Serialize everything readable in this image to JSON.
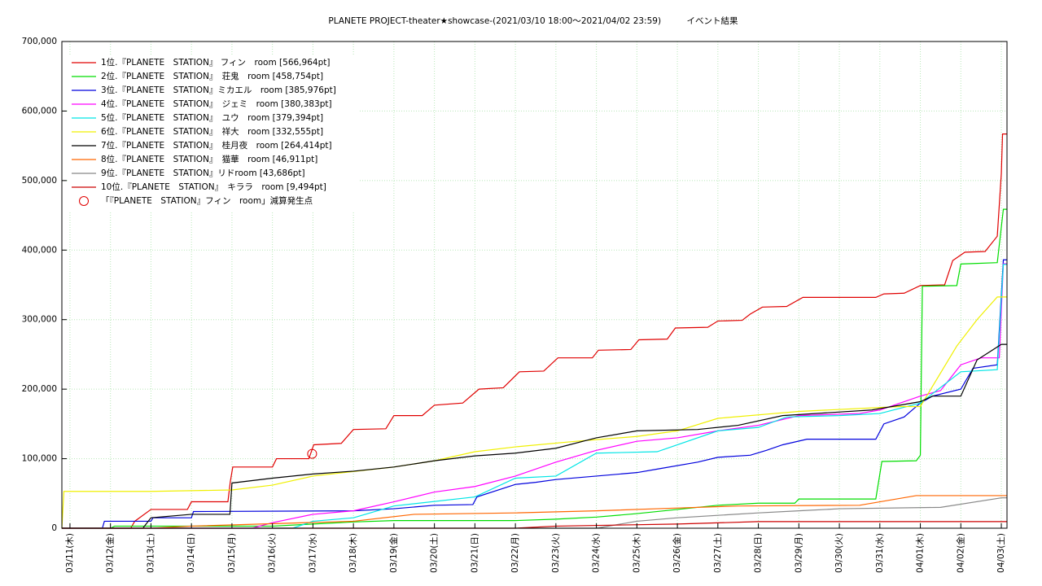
{
  "chart_data": {
    "type": "line",
    "title": "PLANETE PROJECT-theater★showcase-(2021/03/10 18:00～2021/04/02 23:59)　　　イベント結果",
    "xlim": [
      -0.2,
      23.14
    ],
    "ylim": [
      0,
      700000
    ],
    "grid": true,
    "legend": "top-left",
    "yticks": [
      0,
      {
        "value": 100000,
        "label": "100,000"
      },
      {
        "value": 200000,
        "label": "200,000"
      },
      {
        "value": 300000,
        "label": "300,000"
      },
      {
        "value": 400000,
        "label": "400,000"
      },
      {
        "value": 500000,
        "label": "500,000"
      },
      {
        "value": 600000,
        "label": "600,000"
      },
      {
        "value": 700000,
        "label": "700,000"
      }
    ],
    "xticks": [
      {
        "value": 0,
        "label": "03/11(木)"
      },
      {
        "value": 1,
        "label": "03/12(金)"
      },
      {
        "value": 2,
        "label": "03/13(土)"
      },
      {
        "value": 3,
        "label": "03/14(日)"
      },
      {
        "value": 4,
        "label": "03/15(月)"
      },
      {
        "value": 5,
        "label": "03/16(火)"
      },
      {
        "value": 6,
        "label": "03/17(水)"
      },
      {
        "value": 7,
        "label": "03/18(木)"
      },
      {
        "value": 8,
        "label": "03/19(金)"
      },
      {
        "value": 9,
        "label": "03/20(土)"
      },
      {
        "value": 10,
        "label": "03/21(日)"
      },
      {
        "value": 11,
        "label": "03/22(月)"
      },
      {
        "value": 12,
        "label": "03/23(火)"
      },
      {
        "value": 13,
        "label": "03/24(水)"
      },
      {
        "value": 14,
        "label": "03/25(木)"
      },
      {
        "value": 15,
        "label": "03/26(金)"
      },
      {
        "value": 16,
        "label": "03/27(土)"
      },
      {
        "value": 17,
        "label": "03/28(日)"
      },
      {
        "value": 18,
        "label": "03/29(月)"
      },
      {
        "value": 19,
        "label": "03/30(火)"
      },
      {
        "value": 20,
        "label": "03/31(水)"
      },
      {
        "value": 21,
        "label": "04/01(木)"
      },
      {
        "value": 22,
        "label": "04/02(金)"
      },
      {
        "value": 23,
        "label": "04/03(土)"
      }
    ],
    "series": [
      {
        "name": "1位.『PLANETE　STATION』 フィン　room [566,964pt]",
        "color": "#e00000",
        "x": [
          -0.2,
          1.5,
          1.6,
          2.0,
          2.9,
          3.0,
          3.9,
          3.96,
          4.02,
          5.0,
          5.1,
          5.9,
          6.02,
          6.7,
          7.0,
          7.8,
          8.0,
          8.7,
          9.0,
          9.7,
          10.1,
          10.7,
          11.1,
          11.7,
          12.05,
          12.9,
          13.05,
          13.85,
          14.05,
          14.75,
          14.95,
          15.75,
          16.0,
          16.6,
          16.8,
          17.1,
          17.7,
          18.1,
          19.9,
          20.1,
          20.6,
          21.0,
          21.6,
          21.8,
          22.1,
          22.6,
          22.9,
          23.0,
          23.03,
          23.14
        ],
        "values": [
          0,
          0,
          10000,
          27000,
          27000,
          38000,
          38000,
          67000,
          88000,
          88000,
          100000,
          100000,
          120000,
          122000,
          142000,
          143000,
          162000,
          162000,
          177000,
          180000,
          200000,
          202000,
          225000,
          226000,
          245000,
          245000,
          256000,
          257000,
          271000,
          272000,
          288000,
          289000,
          298000,
          299000,
          308000,
          318000,
          319000,
          332000,
          332000,
          337000,
          338000,
          349000,
          350000,
          385000,
          397000,
          398000,
          420000,
          510000,
          566964,
          566964
        ]
      },
      {
        "name": "2位.『PLANETE　STATION』　荘鬼　room [458,754pt]",
        "color": "#00dd00",
        "x": [
          -0.2,
          1.0,
          1.1,
          5.0,
          6.0,
          7.0,
          8.0,
          11.0,
          12.0,
          13.0,
          14.0,
          15.0,
          16.0,
          17.0,
          17.9,
          18.0,
          19.9,
          20.05,
          20.9,
          21.0,
          21.05,
          21.9,
          22.0,
          22.9,
          23.05,
          23.14
        ],
        "values": [
          0,
          0,
          3000,
          3000,
          6000,
          9000,
          11000,
          11000,
          13000,
          16000,
          21000,
          27000,
          33000,
          36000,
          36000,
          42000,
          42000,
          96000,
          97000,
          105000,
          348000,
          349000,
          380000,
          382000,
          458754,
          458754
        ]
      },
      {
        "name": "3位.『PLANETE　STATION』ミカエル　room [385,976pt]",
        "color": "#0000dd",
        "x": [
          -0.2,
          0.8,
          0.85,
          2.0,
          2.05,
          3.0,
          3.05,
          7.0,
          8.0,
          9.0,
          9.95,
          10.05,
          11.0,
          11.5,
          12.0,
          13.0,
          14.0,
          14.5,
          15.5,
          16.0,
          16.8,
          17.2,
          17.6,
          18.2,
          19.9,
          20.1,
          20.6,
          21.0,
          21.3,
          22.0,
          22.3,
          22.9,
          23.05,
          23.14
        ],
        "values": [
          0,
          0,
          10000,
          10000,
          15000,
          15000,
          24000,
          25000,
          28000,
          33000,
          34000,
          45000,
          63000,
          66000,
          70000,
          75000,
          80000,
          85000,
          95000,
          102000,
          105000,
          112000,
          120000,
          128000,
          128000,
          150000,
          160000,
          180000,
          190000,
          200000,
          230000,
          235000,
          385976,
          385976
        ]
      },
      {
        "name": "4位.『PLANETE　STATION』　ジェミ　room [380,383pt]",
        "color": "#ff00ff",
        "x": [
          -0.2,
          4.5,
          5.0,
          6.0,
          7.0,
          8.0,
          9.0,
          10.0,
          11.0,
          12.0,
          13.0,
          14.0,
          15.0,
          16.0,
          17.0,
          18.0,
          19.5,
          20.0,
          21.0,
          21.5,
          22.0,
          22.5,
          22.95,
          23.05,
          23.14
        ],
        "values": [
          0,
          0,
          8000,
          20000,
          25000,
          38000,
          52000,
          60000,
          75000,
          95000,
          112000,
          125000,
          130000,
          140000,
          148000,
          162000,
          165000,
          170000,
          190000,
          198000,
          235000,
          245000,
          245000,
          380383,
          380383
        ]
      },
      {
        "name": "5位.『PLANETE　STATION』　ユウ　room [379,394pt]",
        "color": "#00e5e5",
        "x": [
          -0.2,
          5.5,
          6.0,
          7.0,
          8.0,
          10.0,
          11.0,
          12.0,
          13.0,
          14.5,
          16.0,
          17.0,
          17.7,
          19.0,
          20.0,
          21.0,
          22.0,
          22.9,
          23.05,
          23.14
        ],
        "values": [
          0,
          0,
          10000,
          15000,
          32000,
          45000,
          72000,
          75000,
          108000,
          110000,
          140000,
          145000,
          160000,
          162000,
          165000,
          180000,
          225000,
          228000,
          379394,
          379394
        ]
      },
      {
        "name": "6位.『PLANETE　STATION』　祥大　room [332,555pt]",
        "color": "#f0f000",
        "x": [
          -0.2,
          -0.15,
          2.0,
          4.0,
          5.0,
          6.0,
          8.0,
          9.0,
          10.0,
          11.0,
          12.5,
          14.0,
          15.0,
          16.0,
          18.0,
          20.5,
          21.0,
          21.9,
          22.4,
          22.9,
          23.14
        ],
        "values": [
          0,
          53000,
          53000,
          55000,
          62000,
          75000,
          88000,
          97000,
          110000,
          117000,
          125000,
          132000,
          140000,
          158000,
          168000,
          175000,
          175000,
          262000,
          300000,
          332555,
          332555
        ]
      },
      {
        "name": "7位.『PLANETE　STATION』　桂月夜　room [264,414pt]",
        "color": "#000000",
        "x": [
          -0.2,
          1.8,
          2.0,
          3.0,
          3.95,
          4.0,
          5.0,
          6.0,
          7.0,
          8.0,
          9.0,
          10.0,
          11.0,
          12.0,
          13.0,
          14.0,
          15.5,
          16.5,
          17.6,
          19.8,
          21.0,
          21.3,
          22.0,
          22.4,
          23.0,
          23.14
        ],
        "values": [
          0,
          0,
          15000,
          20000,
          20000,
          65000,
          72000,
          78000,
          82000,
          88000,
          97000,
          104000,
          108000,
          115000,
          130000,
          140000,
          142000,
          148000,
          162000,
          170000,
          182000,
          190000,
          190000,
          242000,
          264414,
          264414
        ]
      },
      {
        "name": "8位.『PLANETE　STATION』　猫華　room [46,911pt]",
        "color": "#ff6600",
        "x": [
          -0.2,
          2.0,
          3.0,
          7.0,
          8.5,
          11.0,
          13.0,
          14.5,
          16.5,
          19.5,
          20.9,
          23.14
        ],
        "values": [
          0,
          0,
          3000,
          10000,
          20000,
          22000,
          25000,
          28000,
          32000,
          33000,
          46911,
          46911
        ]
      },
      {
        "name": "9位.『PLANETE　STATION』リドroom [43,686pt]",
        "color": "#888888",
        "x": [
          -0.2,
          13.0,
          14.0,
          15.0,
          17.0,
          18.0,
          19.0,
          21.5,
          23.0,
          23.14
        ],
        "values": [
          0,
          0,
          10000,
          15000,
          22000,
          25000,
          28000,
          30000,
          43686,
          43686
        ]
      },
      {
        "name": "10位.『PLANETE　STATION』　キララ　room [9,494pt]",
        "color": "#cc0000",
        "x": [
          -0.2,
          11.0,
          12.0,
          15.0,
          17.0,
          23.14
        ],
        "values": [
          0,
          0,
          3000,
          6000,
          9494,
          9494
        ]
      }
    ],
    "markers": {
      "name": "「『PLANETE　STATION』フィン　room」減算発生点",
      "color": "#e00000",
      "x": [
        5.98
      ],
      "values": [
        107000
      ]
    }
  }
}
